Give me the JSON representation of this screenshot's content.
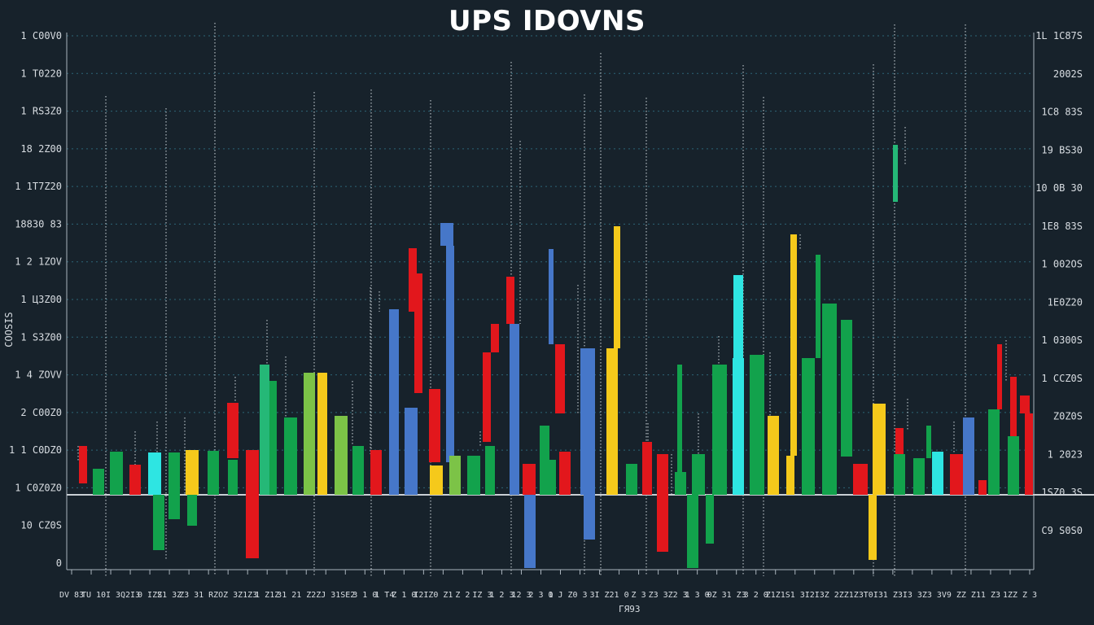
{
  "chart_data": {
    "type": "bar",
    "title": "UPS IDOVNS",
    "ylabel": "COOSIS",
    "xlabel": "ГЯ93",
    "y_ticks_left": [
      "1 C00V0",
      "1 T0220",
      "1 RS3Z0",
      "18 2Z00",
      "1 1T7Z20",
      "18830 83",
      "1 2 1ZOV",
      "1 ЦЗZ00",
      "1 S3Z00",
      "1 4 ZOVV",
      "2 C00Z0",
      "1 1 C0DZ0",
      "1 C0Z0Z0",
      "10 CZ0S",
      "0"
    ],
    "y_ticks_right": [
      "1L 1C87S",
      "2002S",
      "1C8 83S",
      "19 BS30",
      "10 0B 30",
      "1E8 83S",
      "1 002OS",
      "1E0Z20",
      "1 0300S",
      "1 CCZ0S",
      "Z0Z0S",
      "1 2023",
      "1SZ0 3S",
      "C9 S0S0"
    ],
    "x_ticks": [
      "DV 83",
      "TU 1",
      "0I 3",
      "Q2I3",
      "0 IZS",
      "Z1 3Z",
      "Z3 3",
      "1 RZ",
      "OZ 3",
      "Z1Z3",
      "1 Z1Z",
      "31 2",
      "1 Z2",
      "ZJ 3",
      "1SE2",
      "3 1 0",
      "1 T4",
      "Z 1 0",
      "I2IZ",
      "0 Z1",
      "Z 2",
      "IZ 3",
      "1 2 3",
      "12 3",
      "2 3 0",
      "1 J Z",
      "0 3",
      "3I Z",
      "21 0",
      "Z 3",
      "Z3 3",
      "Z2 3",
      "1 3 0",
      "0Z 3",
      "1 Z3",
      "3 2 0",
      "Z1Z1",
      "S1 3",
      "I2I3",
      "Z 2Z",
      "Z1Z3",
      "T0I3",
      "1 Z3",
      "I3 3",
      "Z3 3",
      "V9 Z",
      "Z Z1",
      "1 Z3",
      "1ZZ",
      "Z 3"
    ],
    "ylim": [
      -100,
      566
    ],
    "colors": {
      "green": "#12a24c",
      "light_green": "#25b877",
      "cyan": "#2ee5e2",
      "blue": "#4677c9",
      "red": "#e2171c",
      "yellow": "#f5c91b",
      "lime": "#7cc347",
      "background": "#17222b",
      "grid": "#2d6577",
      "axis": "#aab4bd"
    },
    "bars": [
      {
        "x": 102,
        "w": 10,
        "open": 14,
        "close": 60,
        "color": "red"
      },
      {
        "x": 121,
        "w": 14,
        "open": 0,
        "close": 32,
        "color": "green"
      },
      {
        "x": 143,
        "w": 16,
        "open": 0,
        "close": 53,
        "color": "green"
      },
      {
        "x": 166,
        "w": 14,
        "open": 0,
        "close": 37,
        "color": "red"
      },
      {
        "x": 190,
        "w": 16,
        "open": 0,
        "close": 52,
        "color": "cyan"
      },
      {
        "x": 195,
        "w": 14,
        "open": 0,
        "close": -68,
        "color": "green"
      },
      {
        "x": 214,
        "w": 14,
        "open": 52,
        "close": -30,
        "color": "green"
      },
      {
        "x": 236,
        "w": 16,
        "open": 0,
        "close": 55,
        "color": "yellow"
      },
      {
        "x": 236,
        "w": 12,
        "open": 0,
        "close": -38,
        "color": "green"
      },
      {
        "x": 262,
        "w": 14,
        "open": 0,
        "close": 54,
        "color": "green"
      },
      {
        "x": 286,
        "w": 14,
        "open": 45,
        "close": 113,
        "color": "red"
      },
      {
        "x": 286,
        "w": 12,
        "open": 0,
        "close": 43,
        "color": "green"
      },
      {
        "x": 310,
        "w": 16,
        "open": 55,
        "close": -78,
        "color": "red"
      },
      {
        "x": 333,
        "w": 14,
        "open": 0,
        "close": 140,
        "color": "green"
      },
      {
        "x": 325,
        "w": 12,
        "open": 0,
        "close": 160,
        "color": "light_green"
      },
      {
        "x": 357,
        "w": 16,
        "open": 0,
        "close": 95,
        "color": "green"
      },
      {
        "x": 380,
        "w": 14,
        "open": 0,
        "close": 150,
        "color": "lime"
      },
      {
        "x": 396,
        "w": 12,
        "open": 0,
        "close": 150,
        "color": "yellow"
      },
      {
        "x": 419,
        "w": 16,
        "open": 0,
        "close": 97,
        "color": "lime"
      },
      {
        "x": 440,
        "w": 14,
        "open": 0,
        "close": 60,
        "color": "green"
      },
      {
        "x": 462,
        "w": 14,
        "open": 0,
        "close": 55,
        "color": "red"
      },
      {
        "x": 484,
        "w": 12,
        "open": 0,
        "close": 228,
        "color": "blue"
      },
      {
        "x": 505,
        "w": 16,
        "open": 0,
        "close": 107,
        "color": "blue"
      },
      {
        "x": 507,
        "w": 10,
        "open": 225,
        "close": 303,
        "color": "red"
      },
      {
        "x": 514,
        "w": 10,
        "open": 125,
        "close": 272,
        "color": "red"
      },
      {
        "x": 534,
        "w": 14,
        "open": 40,
        "close": 130,
        "color": "red"
      },
      {
        "x": 536,
        "w": 16,
        "open": 0,
        "close": 36,
        "color": "yellow"
      },
      {
        "x": 549,
        "w": 16,
        "open": 306,
        "close": 334,
        "color": "blue"
      },
      {
        "x": 553,
        "w": 10,
        "open": 40,
        "close": 306,
        "color": "blue"
      },
      {
        "x": 559,
        "w": 14,
        "open": 0,
        "close": 48,
        "color": "lime"
      },
      {
        "x": 582,
        "w": 16,
        "open": 0,
        "close": 48,
        "color": "green"
      },
      {
        "x": 598,
        "w": 10,
        "open": 65,
        "close": 175,
        "color": "red"
      },
      {
        "x": 602,
        "w": 12,
        "open": 0,
        "close": 60,
        "color": "green"
      },
      {
        "x": 608,
        "w": 10,
        "open": 175,
        "close": 210,
        "color": "red"
      },
      {
        "x": 627,
        "w": 10,
        "open": 210,
        "close": 268,
        "color": "red"
      },
      {
        "x": 632,
        "w": 12,
        "open": 0,
        "close": 210,
        "color": "blue"
      },
      {
        "x": 650,
        "w": 16,
        "open": 0,
        "close": 38,
        "color": "red"
      },
      {
        "x": 651,
        "w": 14,
        "open": 0,
        "close": -90,
        "color": "blue"
      },
      {
        "x": 669,
        "w": 12,
        "open": 0,
        "close": 85,
        "color": "green"
      },
      {
        "x": 676,
        "w": 14,
        "open": 0,
        "close": 43,
        "color": "green"
      },
      {
        "x": 677,
        "w": 6,
        "open": 185,
        "close": 302,
        "color": "blue"
      },
      {
        "x": 688,
        "w": 12,
        "open": 100,
        "close": 185,
        "color": "red"
      },
      {
        "x": 694,
        "w": 14,
        "open": 0,
        "close": 53,
        "color": "red"
      },
      {
        "x": 722,
        "w": 18,
        "open": 0,
        "close": 180,
        "color": "blue"
      },
      {
        "x": 724,
        "w": 14,
        "open": 0,
        "close": -55,
        "color": "blue"
      },
      {
        "x": 752,
        "w": 14,
        "open": 0,
        "close": 180,
        "color": "yellow"
      },
      {
        "x": 758,
        "w": 8,
        "open": 180,
        "close": 330,
        "color": "yellow"
      },
      {
        "x": 776,
        "w": 14,
        "open": 0,
        "close": 38,
        "color": "green"
      },
      {
        "x": 795,
        "w": 12,
        "open": 0,
        "close": 65,
        "color": "red"
      },
      {
        "x": 814,
        "w": 14,
        "open": 0,
        "close": 50,
        "color": "red"
      },
      {
        "x": 814,
        "w": 14,
        "open": 0,
        "close": -70,
        "color": "red"
      },
      {
        "x": 836,
        "w": 14,
        "open": 0,
        "close": 28,
        "color": "green"
      },
      {
        "x": 835,
        "w": 6,
        "open": 28,
        "close": 160,
        "color": "green"
      },
      {
        "x": 851,
        "w": 14,
        "open": 0,
        "close": -90,
        "color": "green"
      },
      {
        "x": 858,
        "w": 16,
        "open": 0,
        "close": 50,
        "color": "green"
      },
      {
        "x": 872,
        "w": 10,
        "open": 0,
        "close": -60,
        "color": "green"
      },
      {
        "x": 884,
        "w": 18,
        "open": 0,
        "close": 160,
        "color": "green"
      },
      {
        "x": 907,
        "w": 14,
        "open": 0,
        "close": 168,
        "color": "cyan"
      },
      {
        "x": 907,
        "w": 12,
        "open": 168,
        "close": 270,
        "color": "cyan"
      },
      {
        "x": 930,
        "w": 18,
        "open": 0,
        "close": 172,
        "color": "green"
      },
      {
        "x": 950,
        "w": 14,
        "open": 0,
        "close": 97,
        "color": "yellow"
      },
      {
        "x": 971,
        "w": 10,
        "open": 0,
        "close": 48,
        "color": "yellow"
      },
      {
        "x": 975,
        "w": 8,
        "open": 48,
        "close": 320,
        "color": "yellow"
      },
      {
        "x": 993,
        "w": 16,
        "open": 0,
        "close": 168,
        "color": "green"
      },
      {
        "x": 1005,
        "w": 6,
        "open": 168,
        "close": 295,
        "color": "green"
      },
      {
        "x": 1019,
        "w": 18,
        "open": 0,
        "close": 235,
        "color": "green"
      },
      {
        "x": 1040,
        "w": 14,
        "open": 47,
        "close": 215,
        "color": "green"
      },
      {
        "x": 1057,
        "w": 18,
        "open": 0,
        "close": 38,
        "color": "red"
      },
      {
        "x": 1072,
        "w": 10,
        "open": 0,
        "close": -80,
        "color": "yellow"
      },
      {
        "x": 1080,
        "w": 16,
        "open": 0,
        "close": 112,
        "color": "yellow"
      },
      {
        "x": 1100,
        "w": 6,
        "open": 360,
        "close": 430,
        "color": "light_green"
      },
      {
        "x": 1105,
        "w": 14,
        "open": 0,
        "close": 50,
        "color": "green"
      },
      {
        "x": 1105,
        "w": 10,
        "open": 50,
        "close": 82,
        "color": "red"
      },
      {
        "x": 1129,
        "w": 14,
        "open": 0,
        "close": 45,
        "color": "green"
      },
      {
        "x": 1141,
        "w": 6,
        "open": 45,
        "close": 85,
        "color": "green"
      },
      {
        "x": 1152,
        "w": 14,
        "open": 0,
        "close": 53,
        "color": "cyan"
      },
      {
        "x": 1175,
        "w": 16,
        "open": 0,
        "close": 50,
        "color": "red"
      },
      {
        "x": 1190,
        "w": 14,
        "open": 0,
        "close": 95,
        "color": "blue"
      },
      {
        "x": 1207,
        "w": 10,
        "open": 0,
        "close": 18,
        "color": "red"
      },
      {
        "x": 1221,
        "w": 14,
        "open": 0,
        "close": 105,
        "color": "green"
      },
      {
        "x": 1228,
        "w": 6,
        "open": 105,
        "close": 185,
        "color": "red"
      },
      {
        "x": 1245,
        "w": 14,
        "open": 0,
        "close": 72,
        "color": "green"
      },
      {
        "x": 1245,
        "w": 8,
        "open": 72,
        "close": 145,
        "color": "red"
      },
      {
        "x": 1264,
        "w": 10,
        "open": 0,
        "close": 100,
        "color": "red"
      },
      {
        "x": 1259,
        "w": 12,
        "open": 100,
        "close": 122,
        "color": "red"
      }
    ],
    "wicks": [
      {
        "x": 130,
        "low": -100,
        "high": 490
      },
      {
        "x": 204,
        "low": -80,
        "high": 475
      },
      {
        "x": 264,
        "low": -100,
        "high": 580
      },
      {
        "x": 386,
        "low": -100,
        "high": 495
      },
      {
        "x": 456,
        "low": -100,
        "high": 498
      },
      {
        "x": 529,
        "low": -100,
        "high": 485
      },
      {
        "x": 628,
        "low": -100,
        "high": 532
      },
      {
        "x": 718,
        "low": -100,
        "high": 492
      },
      {
        "x": 738,
        "low": -100,
        "high": 543
      },
      {
        "x": 794,
        "low": -100,
        "high": 488
      },
      {
        "x": 913,
        "low": -100,
        "high": 528
      },
      {
        "x": 938,
        "low": -100,
        "high": 489
      },
      {
        "x": 1073,
        "low": -100,
        "high": 529
      },
      {
        "x": 1099,
        "low": -100,
        "high": 578
      },
      {
        "x": 1186,
        "low": -100,
        "high": 578
      },
      {
        "x": 96,
        "low": 40,
        "high": 60
      },
      {
        "x": 166,
        "low": 0,
        "high": 78
      },
      {
        "x": 193,
        "low": 40,
        "high": 90
      },
      {
        "x": 227,
        "low": 0,
        "high": 95
      },
      {
        "x": 289,
        "low": 100,
        "high": 145
      },
      {
        "x": 328,
        "low": 140,
        "high": 215
      },
      {
        "x": 351,
        "low": 95,
        "high": 170
      },
      {
        "x": 433,
        "low": 60,
        "high": 140
      },
      {
        "x": 455,
        "low": 50,
        "high": 255
      },
      {
        "x": 466,
        "low": 225,
        "high": 250
      },
      {
        "x": 590,
        "low": 60,
        "high": 78
      },
      {
        "x": 639,
        "low": 210,
        "high": 435
      },
      {
        "x": 710,
        "low": 100,
        "high": 258
      },
      {
        "x": 796,
        "low": 50,
        "high": 88
      },
      {
        "x": 825,
        "low": 0,
        "high": 50
      },
      {
        "x": 858,
        "low": 50,
        "high": 100
      },
      {
        "x": 883,
        "low": 160,
        "high": 195
      },
      {
        "x": 946,
        "low": 97,
        "high": 175
      },
      {
        "x": 983,
        "low": 300,
        "high": 320
      },
      {
        "x": 1112,
        "low": 405,
        "high": 452
      },
      {
        "x": 1115,
        "low": 80,
        "high": 118
      },
      {
        "x": 1172,
        "low": 50,
        "high": 90
      },
      {
        "x": 1236,
        "low": 140,
        "high": 190
      }
    ]
  }
}
